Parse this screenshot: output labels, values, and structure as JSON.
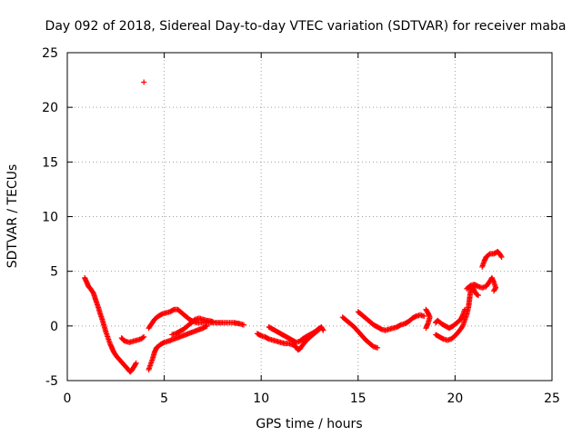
{
  "chart_data": {
    "type": "scatter",
    "title": "Day 092 of 2018, Sidereal Day-to-day VTEC variation (SDTVAR) for receiver maba",
    "xlabel": "GPS time / hours",
    "ylabel": "SDTVAR / TECUs",
    "xlim": [
      0,
      25
    ],
    "ylim": [
      -5,
      25
    ],
    "xticks": [
      0,
      5,
      10,
      15,
      20,
      25
    ],
    "yticks": [
      -5,
      0,
      5,
      10,
      15,
      20,
      25
    ],
    "xtick_labels": [
      "0",
      "5",
      "10",
      "15",
      "20",
      "25"
    ],
    "ytick_labels": [
      "-5",
      "0",
      "5",
      "10",
      "15",
      "20",
      "25"
    ],
    "grid": true,
    "marker": "+",
    "color": "#ff0000",
    "series": [
      {
        "name": "SDTVAR",
        "segments": [
          [
            [
              0.9,
              4.4
            ],
            [
              1.0,
              4.0
            ],
            [
              1.1,
              3.6
            ],
            [
              1.2,
              3.4
            ],
            [
              1.35,
              3.0
            ],
            [
              1.5,
              2.2
            ],
            [
              1.6,
              1.7
            ],
            [
              1.7,
              1.1
            ],
            [
              1.8,
              0.6
            ],
            [
              1.9,
              0.0
            ],
            [
              2.0,
              -0.6
            ],
            [
              2.1,
              -1.1
            ],
            [
              2.2,
              -1.6
            ],
            [
              2.3,
              -2.0
            ],
            [
              2.4,
              -2.4
            ],
            [
              2.55,
              -2.8
            ],
            [
              2.7,
              -3.1
            ],
            [
              2.85,
              -3.4
            ],
            [
              3.0,
              -3.7
            ],
            [
              3.15,
              -4.0
            ],
            [
              3.25,
              -4.2
            ],
            [
              3.35,
              -4.0
            ],
            [
              3.45,
              -3.7
            ],
            [
              3.55,
              -3.4
            ]
          ],
          [
            [
              2.8,
              -1.1
            ],
            [
              2.9,
              -1.3
            ],
            [
              3.0,
              -1.4
            ],
            [
              3.2,
              -1.5
            ],
            [
              3.4,
              -1.4
            ],
            [
              3.6,
              -1.3
            ],
            [
              3.8,
              -1.2
            ],
            [
              3.95,
              -1.0
            ]
          ],
          [
            [
              4.2,
              -4.0
            ],
            [
              4.3,
              -3.5
            ],
            [
              4.4,
              -3.0
            ],
            [
              4.5,
              -2.4
            ],
            [
              4.6,
              -2.0
            ],
            [
              4.8,
              -1.7
            ],
            [
              5.0,
              -1.5
            ],
            [
              5.2,
              -1.4
            ],
            [
              5.5,
              -1.2
            ],
            [
              5.8,
              -1.0
            ],
            [
              6.1,
              -0.8
            ],
            [
              6.4,
              -0.6
            ],
            [
              6.7,
              -0.4
            ],
            [
              7.0,
              -0.2
            ],
            [
              7.2,
              0.0
            ]
          ],
          [
            [
              4.2,
              -0.2
            ],
            [
              4.35,
              0.2
            ],
            [
              4.5,
              0.6
            ],
            [
              4.7,
              0.9
            ],
            [
              4.9,
              1.1
            ],
            [
              5.1,
              1.2
            ],
            [
              5.3,
              1.3
            ],
            [
              5.5,
              1.5
            ],
            [
              5.7,
              1.5
            ],
            [
              5.9,
              1.2
            ],
            [
              6.1,
              0.9
            ],
            [
              6.3,
              0.6
            ],
            [
              6.5,
              0.4
            ],
            [
              6.7,
              0.3
            ],
            [
              7.0,
              0.3
            ],
            [
              7.3,
              0.3
            ],
            [
              7.6,
              0.3
            ],
            [
              8.0,
              0.3
            ],
            [
              8.3,
              0.3
            ],
            [
              8.6,
              0.3
            ],
            [
              8.9,
              0.2
            ],
            [
              9.1,
              0.1
            ]
          ],
          [
            [
              5.4,
              -0.8
            ],
            [
              5.6,
              -0.7
            ],
            [
              5.8,
              -0.5
            ],
            [
              6.0,
              -0.3
            ],
            [
              6.2,
              0.0
            ],
            [
              6.4,
              0.3
            ],
            [
              6.6,
              0.6
            ],
            [
              6.8,
              0.7
            ],
            [
              7.0,
              0.6
            ],
            [
              7.2,
              0.5
            ],
            [
              7.5,
              0.4
            ]
          ],
          [
            [
              9.8,
              -0.7
            ],
            [
              10.0,
              -0.9
            ],
            [
              10.2,
              -1.0
            ],
            [
              10.4,
              -1.2
            ],
            [
              10.6,
              -1.3
            ],
            [
              10.8,
              -1.4
            ],
            [
              11.0,
              -1.5
            ],
            [
              11.2,
              -1.6
            ],
            [
              11.4,
              -1.6
            ],
            [
              11.6,
              -1.7
            ],
            [
              11.8,
              -1.9
            ],
            [
              11.9,
              -2.2
            ],
            [
              12.0,
              -2.1
            ],
            [
              12.2,
              -1.6
            ],
            [
              12.4,
              -1.2
            ],
            [
              12.6,
              -0.9
            ],
            [
              12.8,
              -0.6
            ],
            [
              13.0,
              -0.3
            ],
            [
              13.1,
              -0.1
            ],
            [
              13.2,
              -0.4
            ]
          ],
          [
            [
              10.4,
              -0.1
            ],
            [
              10.6,
              -0.3
            ],
            [
              10.8,
              -0.5
            ],
            [
              11.0,
              -0.7
            ],
            [
              11.2,
              -0.9
            ],
            [
              11.4,
              -1.1
            ],
            [
              11.6,
              -1.3
            ],
            [
              11.8,
              -1.5
            ],
            [
              12.0,
              -1.4
            ],
            [
              12.2,
              -1.1
            ],
            [
              12.5,
              -0.8
            ],
            [
              12.8,
              -0.5
            ],
            [
              13.0,
              -0.2
            ]
          ],
          [
            [
              14.2,
              0.8
            ],
            [
              14.4,
              0.5
            ],
            [
              14.6,
              0.2
            ],
            [
              14.8,
              -0.1
            ],
            [
              15.0,
              -0.5
            ],
            [
              15.2,
              -0.9
            ],
            [
              15.4,
              -1.3
            ],
            [
              15.6,
              -1.6
            ],
            [
              15.8,
              -1.9
            ],
            [
              16.0,
              -2.0
            ]
          ],
          [
            [
              15.0,
              1.3
            ],
            [
              15.2,
              1.0
            ],
            [
              15.4,
              0.7
            ],
            [
              15.6,
              0.4
            ],
            [
              15.8,
              0.1
            ],
            [
              16.0,
              -0.1
            ],
            [
              16.2,
              -0.3
            ],
            [
              16.4,
              -0.4
            ],
            [
              16.6,
              -0.3
            ],
            [
              16.8,
              -0.2
            ],
            [
              17.0,
              -0.1
            ],
            [
              17.2,
              0.1
            ],
            [
              17.4,
              0.2
            ],
            [
              17.6,
              0.4
            ],
            [
              17.8,
              0.7
            ],
            [
              18.0,
              0.9
            ],
            [
              18.2,
              1.0
            ],
            [
              18.4,
              0.9
            ]
          ],
          [
            [
              18.5,
              1.5
            ],
            [
              18.6,
              1.2
            ],
            [
              18.7,
              0.8
            ],
            [
              18.6,
              0.2
            ],
            [
              18.5,
              -0.2
            ]
          ],
          [
            [
              19.0,
              0.3
            ],
            [
              19.1,
              0.5
            ],
            [
              19.3,
              0.2
            ],
            [
              19.5,
              0.0
            ],
            [
              19.7,
              -0.2
            ],
            [
              19.9,
              0.0
            ],
            [
              20.1,
              0.3
            ],
            [
              20.3,
              0.6
            ],
            [
              20.4,
              1.0
            ],
            [
              20.5,
              1.5
            ]
          ],
          [
            [
              19.0,
              -0.8
            ],
            [
              19.2,
              -1.0
            ],
            [
              19.4,
              -1.2
            ],
            [
              19.6,
              -1.3
            ],
            [
              19.8,
              -1.2
            ],
            [
              20.0,
              -0.9
            ],
            [
              20.2,
              -0.5
            ],
            [
              20.4,
              0.0
            ],
            [
              20.5,
              0.5
            ],
            [
              20.6,
              1.0
            ],
            [
              20.7,
              1.8
            ],
            [
              20.75,
              2.5
            ],
            [
              20.8,
              3.2
            ],
            [
              20.9,
              3.6
            ],
            [
              21.0,
              3.2
            ],
            [
              21.1,
              2.9
            ],
            [
              21.2,
              2.8
            ]
          ],
          [
            [
              20.6,
              3.4
            ],
            [
              20.8,
              3.7
            ],
            [
              21.0,
              3.8
            ],
            [
              21.2,
              3.6
            ],
            [
              21.4,
              3.5
            ],
            [
              21.6,
              3.6
            ],
            [
              21.8,
              4.1
            ],
            [
              21.9,
              4.4
            ],
            [
              22.0,
              4.0
            ],
            [
              22.1,
              3.5
            ],
            [
              22.0,
              3.2
            ]
          ],
          [
            [
              21.4,
              5.4
            ],
            [
              21.5,
              5.9
            ],
            [
              21.6,
              6.3
            ],
            [
              21.8,
              6.6
            ],
            [
              22.0,
              6.6
            ],
            [
              22.2,
              6.8
            ],
            [
              22.3,
              6.6
            ],
            [
              22.4,
              6.3
            ]
          ],
          [
            [
              3.95,
              22.3
            ]
          ]
        ]
      }
    ]
  }
}
